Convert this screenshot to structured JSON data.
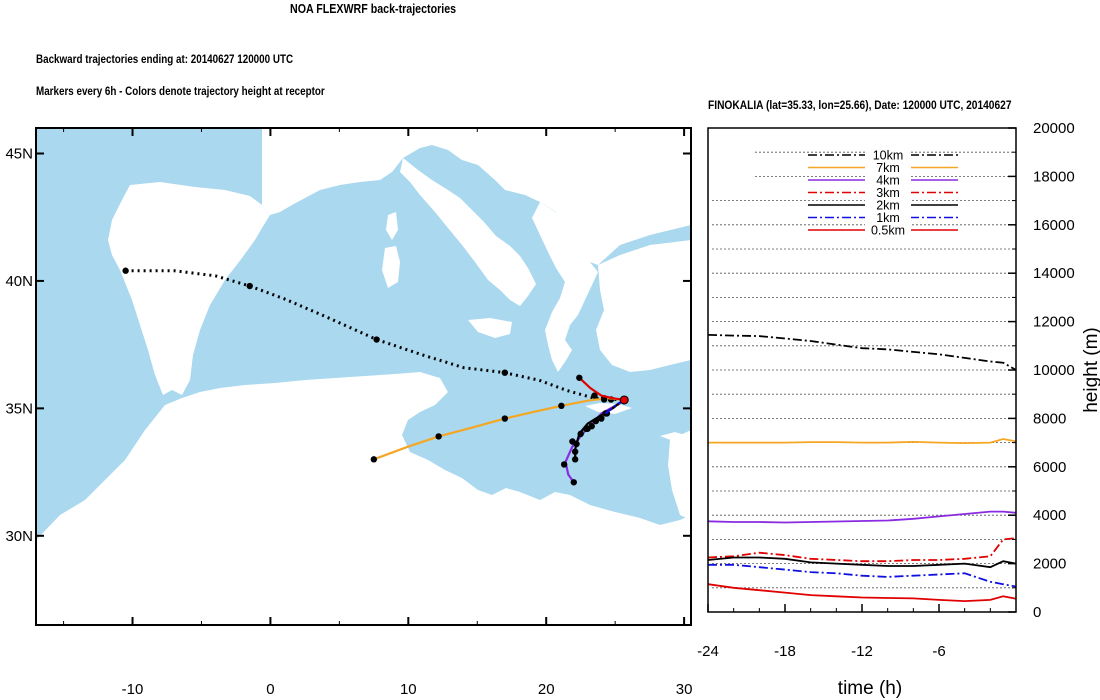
{
  "header": {
    "title": "NOA FLEXWRF back-trajectories",
    "subtitle_line1": "Backward trajectories ending at: 20140627  120000 UTC",
    "subtitle_line2": "Markers every 6h - Colors denote trajectory height at receptor"
  },
  "map": {
    "lon_ticks": [
      "-10",
      "0",
      "10",
      "20",
      "30"
    ],
    "lat_ticks": [
      "45N",
      "40N",
      "35N",
      "30N"
    ],
    "lon_range": [
      -17,
      30.5
    ],
    "lat_range": [
      26.5,
      46
    ],
    "colors": {
      "sea": "#a9d8ef",
      "land": "#ffffff"
    },
    "receptor": {
      "lon": 25.66,
      "lat": 35.33
    },
    "trajectories": [
      {
        "height": "10km",
        "color": "#000000",
        "style": "dotted",
        "points": [
          [
            -10.5,
            40.4
          ],
          [
            -7,
            40.4
          ],
          [
            -4,
            40.2
          ],
          [
            -1.5,
            39.8
          ],
          [
            1,
            39.3
          ],
          [
            4,
            38.6
          ],
          [
            7.7,
            37.7
          ],
          [
            11,
            37.1
          ],
          [
            14,
            36.6
          ],
          [
            17,
            36.4
          ],
          [
            19.5,
            36.1
          ],
          [
            21.5,
            35.7
          ],
          [
            23.5,
            35.4
          ],
          [
            25.66,
            35.33
          ]
        ],
        "markers": [
          [
            -10.5,
            40.4
          ],
          [
            -1.5,
            39.8
          ],
          [
            7.7,
            37.7
          ],
          [
            17,
            36.4
          ],
          [
            23.5,
            35.5
          ],
          [
            24.2,
            35.4
          ],
          [
            24.7,
            35.35
          ]
        ]
      },
      {
        "height": "7km",
        "color": "#f5a623",
        "style": "solid",
        "points": [
          [
            7.5,
            33.0
          ],
          [
            10,
            33.5
          ],
          [
            12.2,
            33.9
          ],
          [
            15,
            34.3
          ],
          [
            17,
            34.6
          ],
          [
            19,
            34.85
          ],
          [
            21.1,
            35.1
          ],
          [
            23,
            35.3
          ],
          [
            24.5,
            35.4
          ],
          [
            25.66,
            35.33
          ]
        ],
        "markers": [
          [
            7.5,
            33.0
          ],
          [
            12.2,
            33.9
          ],
          [
            17,
            34.6
          ],
          [
            21.1,
            35.1
          ],
          [
            24.2,
            35.35
          ]
        ]
      },
      {
        "height": "4km",
        "color": "#8a2be2",
        "style": "solid",
        "points": [
          [
            22.0,
            32.1
          ],
          [
            21.6,
            32.4
          ],
          [
            21.4,
            32.9
          ],
          [
            21.9,
            33.5
          ],
          [
            22.8,
            34.1
          ],
          [
            24.0,
            34.8
          ],
          [
            25.0,
            35.1
          ],
          [
            25.66,
            35.33
          ]
        ],
        "markers": [
          [
            22.0,
            32.1
          ],
          [
            21.3,
            32.8
          ],
          [
            21.9,
            33.7
          ],
          [
            23.0,
            34.2
          ],
          [
            24.3,
            34.8
          ]
        ]
      },
      {
        "height": "3km",
        "color": "#e00000",
        "style": "dashdot",
        "points": [
          [
            24.5,
            34.9
          ],
          [
            25.1,
            35.1
          ],
          [
            25.66,
            35.33
          ]
        ],
        "markers": []
      },
      {
        "height": "2km",
        "color": "#000000",
        "style": "solid",
        "points": [
          [
            22.1,
            32.9
          ],
          [
            22.1,
            33.4
          ],
          [
            22.4,
            34.0
          ],
          [
            23.0,
            34.4
          ],
          [
            23.6,
            34.6
          ],
          [
            24.2,
            34.8
          ],
          [
            24.8,
            35.0
          ],
          [
            25.3,
            35.2
          ],
          [
            25.66,
            35.33
          ]
        ],
        "markers": [
          [
            22.1,
            33.0
          ],
          [
            22.1,
            33.3
          ],
          [
            22.2,
            33.6
          ],
          [
            22.5,
            34.0
          ],
          [
            22.9,
            34.2
          ],
          [
            23.3,
            34.3
          ],
          [
            23.6,
            34.5
          ],
          [
            24.0,
            34.6
          ],
          [
            24.4,
            34.8
          ]
        ]
      },
      {
        "height": "1km",
        "color": "#1010e0",
        "style": "dashdot",
        "points": [
          [
            24.3,
            34.8
          ],
          [
            25.0,
            35.1
          ],
          [
            25.66,
            35.33
          ]
        ],
        "markers": []
      },
      {
        "height": "0.5km",
        "color": "#e00000",
        "style": "solid",
        "points": [
          [
            22.4,
            36.2
          ],
          [
            23.2,
            35.8
          ],
          [
            24.0,
            35.5
          ],
          [
            24.8,
            35.4
          ],
          [
            25.66,
            35.33
          ]
        ],
        "markers": [
          [
            22.4,
            36.2
          ]
        ]
      }
    ]
  },
  "profile": {
    "title": "FINOKALIA (lat=35.33,  lon=25.66), Date: 120000 UTC, 20140627",
    "xlabel": "time (h)",
    "ylabel": "height (m)",
    "x_ticks": [
      "-24",
      "-18",
      "-12",
      "-6"
    ],
    "y_ticks": [
      "0",
      "2000",
      "4000",
      "6000",
      "8000",
      "10000",
      "12000",
      "14000",
      "16000",
      "18000",
      "20000"
    ],
    "xlim": [
      -24,
      0
    ],
    "ylim": [
      0,
      20000
    ],
    "legend": [
      "10km",
      "7km",
      "4km",
      "3km",
      "2km",
      "1km",
      "0.5km"
    ],
    "chart_data": {
      "type": "line",
      "x": [
        -24,
        -22,
        -20,
        -18,
        -16,
        -14,
        -12,
        -10,
        -8,
        -6,
        -4,
        -2,
        -1,
        0
      ],
      "series": [
        {
          "name": "10km",
          "color": "#000000",
          "dash": "dashdot",
          "values": [
            11450,
            11420,
            11400,
            11300,
            11200,
            11050,
            10900,
            10850,
            10750,
            10650,
            10500,
            10350,
            10300,
            10000
          ]
        },
        {
          "name": "7km",
          "color": "#f5a623",
          "dash": "solid",
          "values": [
            7000,
            7000,
            7000,
            7000,
            7020,
            7020,
            7000,
            7000,
            7030,
            7000,
            6980,
            7000,
            7150,
            7050
          ]
        },
        {
          "name": "4km",
          "color": "#8a2be2",
          "dash": "solid",
          "values": [
            3750,
            3720,
            3720,
            3700,
            3720,
            3740,
            3760,
            3780,
            3850,
            3950,
            4050,
            4150,
            4150,
            4100
          ]
        },
        {
          "name": "3km",
          "color": "#e00000",
          "dash": "dashdot",
          "values": [
            2250,
            2300,
            2450,
            2350,
            2200,
            2150,
            2100,
            2100,
            2150,
            2150,
            2200,
            2300,
            3000,
            3050
          ]
        },
        {
          "name": "2km",
          "color": "#000000",
          "dash": "solid",
          "values": [
            2150,
            2250,
            2250,
            2200,
            2050,
            2000,
            1950,
            1900,
            1900,
            1950,
            2000,
            1850,
            2100,
            2000
          ]
        },
        {
          "name": "1km",
          "color": "#1010e0",
          "dash": "dashdot",
          "values": [
            1950,
            1950,
            1850,
            1750,
            1650,
            1600,
            1500,
            1450,
            1500,
            1550,
            1600,
            1250,
            1150,
            1050
          ]
        },
        {
          "name": "0.5km",
          "color": "#e00000",
          "dash": "solid",
          "values": [
            1150,
            1000,
            900,
            800,
            700,
            650,
            600,
            580,
            560,
            500,
            450,
            500,
            650,
            550
          ]
        }
      ]
    }
  }
}
